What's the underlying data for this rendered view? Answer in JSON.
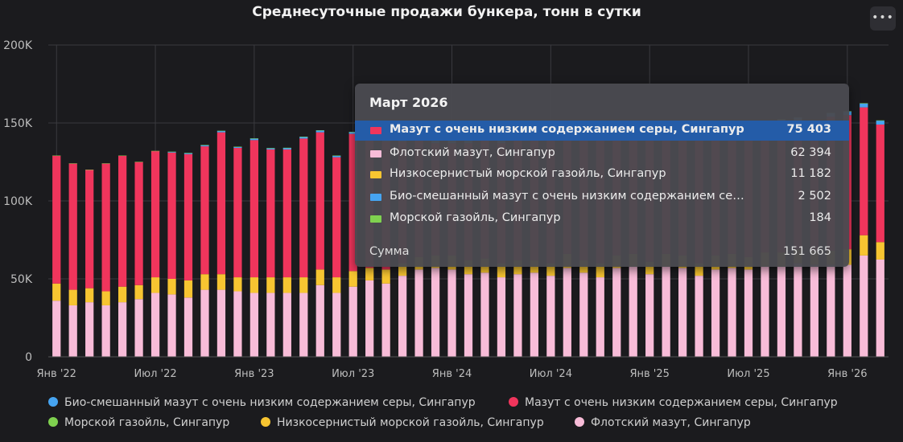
{
  "header": {
    "title": "Среднесуточные продажи бункера, тонн в сутки",
    "menu_icon": "ellipsis-icon",
    "menu_glyph": "•••"
  },
  "colors": {
    "vlsfo": "#f0355c",
    "hsfo": "#f8bcd8",
    "lsmgo": "#f7c531",
    "bio": "#46a4f1",
    "mgo": "#7fd14f"
  },
  "chart_data": {
    "type": "bar",
    "stacked": true,
    "title": "Среднесуточные продажи бункера, тонн в сутки",
    "ylim": [
      0,
      200000
    ],
    "yticks": [
      "0",
      "50K",
      "100K",
      "150K",
      "200K"
    ],
    "xticks": [
      {
        "index": 0,
        "label": "Янв '22"
      },
      {
        "index": 6,
        "label": "Июл '22"
      },
      {
        "index": 12,
        "label": "Янв '23"
      },
      {
        "index": 18,
        "label": "Июл '23"
      },
      {
        "index": 24,
        "label": "Янв '24"
      },
      {
        "index": 30,
        "label": "Июл '24"
      },
      {
        "index": 36,
        "label": "Янв '25"
      },
      {
        "index": 42,
        "label": "Июл '25"
      },
      {
        "index": 48,
        "label": "Янв '26"
      }
    ],
    "grid": true,
    "legend_position": "bottom",
    "categories": [
      "2022-01",
      "2022-02",
      "2022-03",
      "2022-04",
      "2022-05",
      "2022-06",
      "2022-07",
      "2022-08",
      "2022-09",
      "2022-10",
      "2022-11",
      "2022-12",
      "2023-01",
      "2023-02",
      "2023-03",
      "2023-04",
      "2023-05",
      "2023-06",
      "2023-07",
      "2023-08",
      "2023-09",
      "2023-10",
      "2023-11",
      "2023-12",
      "2024-01",
      "2024-02",
      "2024-03",
      "2024-04",
      "2024-05",
      "2024-06",
      "2024-07",
      "2024-08",
      "2024-09",
      "2024-10",
      "2024-11",
      "2024-12",
      "2025-01",
      "2025-02",
      "2025-03",
      "2025-04",
      "2025-05",
      "2025-06",
      "2025-07",
      "2025-08",
      "2025-09",
      "2025-10",
      "2025-11",
      "2025-12",
      "2026-01",
      "2026-02",
      "2026-03"
    ],
    "series": [
      {
        "key": "hsfo",
        "name": "Флотский мазут, Сингапур",
        "values": [
          36000,
          33000,
          35000,
          33000,
          35000,
          37000,
          41000,
          40000,
          38000,
          43000,
          43000,
          42000,
          41000,
          41000,
          41000,
          41000,
          46000,
          41000,
          45000,
          49000,
          47000,
          52000,
          56000,
          57000,
          56000,
          53000,
          54000,
          51000,
          53000,
          54000,
          52000,
          57000,
          54000,
          51000,
          57000,
          58000,
          53000,
          58000,
          57000,
          52000,
          56000,
          57000,
          56000,
          58000,
          58000,
          60000,
          59000,
          59000,
          59000,
          65000,
          62394
        ]
      },
      {
        "key": "lsmgo",
        "name": "Низкосернистый морской газойль, Сингапур",
        "values": [
          11000,
          10000,
          9000,
          9000,
          10000,
          9000,
          10000,
          10000,
          11000,
          10000,
          10000,
          9000,
          10000,
          10000,
          10000,
          10000,
          10000,
          10000,
          10000,
          8000,
          9000,
          8000,
          8000,
          8000,
          9000,
          9000,
          9000,
          9000,
          9000,
          8000,
          8000,
          9000,
          8000,
          9000,
          8000,
          8000,
          8000,
          8000,
          8000,
          8000,
          9000,
          9000,
          8000,
          9000,
          9000,
          9000,
          9000,
          9000,
          10000,
          13000,
          11182
        ]
      },
      {
        "key": "vlsfo",
        "name": "Мазут с очень низким содержанием серы, Сингапур",
        "values": [
          82000,
          81000,
          76000,
          82000,
          84000,
          79000,
          81000,
          81000,
          81000,
          82000,
          91000,
          83000,
          88000,
          82000,
          82000,
          89000,
          88000,
          77000,
          88000,
          85000,
          82000,
          78000,
          80000,
          72000,
          72000,
          75000,
          78000,
          77000,
          80000,
          82000,
          82000,
          76000,
          79000,
          80000,
          75000,
          78000,
          84000,
          80000,
          81000,
          85000,
          83000,
          80000,
          78000,
          80000,
          83000,
          82000,
          81000,
          86000,
          86000,
          82000,
          75403
        ]
      },
      {
        "key": "bio",
        "name": "Био-смешанный мазут с очень низким содержанием серы, Сингапур",
        "values": [
          0,
          0,
          0,
          0,
          0,
          0,
          0,
          500,
          700,
          800,
          900,
          700,
          1000,
          800,
          1000,
          1100,
          1200,
          1000,
          1200,
          1300,
          1300,
          1400,
          1400,
          1500,
          1500,
          1500,
          1600,
          1600,
          1700,
          1700,
          1800,
          1800,
          1900,
          1900,
          2000,
          2000,
          2000,
          2100,
          2100,
          2200,
          2200,
          2200,
          2300,
          2300,
          2300,
          2400,
          2400,
          2400,
          2400,
          2500,
          2502
        ]
      },
      {
        "key": "mgo",
        "name": "Морской газойль, Сингапур",
        "values": [
          100,
          100,
          100,
          100,
          100,
          100,
          100,
          100,
          100,
          100,
          100,
          100,
          100,
          100,
          100,
          100,
          100,
          100,
          100,
          100,
          100,
          100,
          200,
          200,
          200,
          200,
          200,
          200,
          200,
          200,
          200,
          200,
          200,
          200,
          200,
          200,
          200,
          200,
          200,
          200,
          200,
          200,
          200,
          200,
          200,
          200,
          200,
          200,
          200,
          200,
          184
        ]
      }
    ]
  },
  "legend": [
    {
      "key": "bio",
      "label": "Био-смешанный мазут с очень низким содержанием серы, Сингапур",
      "color": "#46a4f1"
    },
    {
      "key": "vlsfo",
      "label": "Мазут с очень низким содержанием серы, Сингапур",
      "color": "#f0355c"
    },
    {
      "key": "mgo",
      "label": "Морской газойль, Сингапур",
      "color": "#7fd14f"
    },
    {
      "key": "lsmgo",
      "label": "Низкосернистый морской газойль, Сингапур",
      "color": "#f7c531"
    },
    {
      "key": "hsfo",
      "label": "Флотский мазут, Сингапур",
      "color": "#f8bcd8"
    }
  ],
  "tooltip": {
    "title": "Март 2026",
    "rows": [
      {
        "label": "Мазут с очень низким содержанием серы, Сингапур",
        "value": "75 403",
        "color": "#f0355c",
        "highlighted": true
      },
      {
        "label": "Флотский мазут, Сингапур",
        "value": "62 394",
        "color": "#f8bcd8",
        "highlighted": false
      },
      {
        "label": "Низкосернистый морской газойль, Сингапур",
        "value": "11 182",
        "color": "#f7c531",
        "highlighted": false
      },
      {
        "label": "Био-смешанный мазут с очень низким содержанием серы, Сингапур",
        "value": "2 502",
        "color": "#46a4f1",
        "highlighted": false
      },
      {
        "label": "Морской газойль, Сингапур",
        "value": "184",
        "color": "#7fd14f",
        "highlighted": false
      }
    ],
    "sum_label": "Сумма",
    "sum_value": "151 665"
  }
}
